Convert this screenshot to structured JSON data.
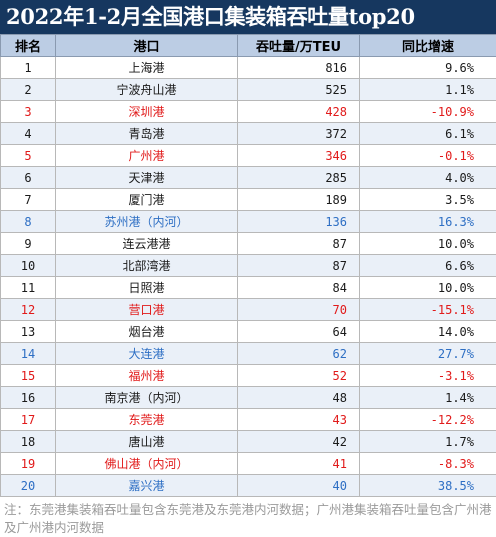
{
  "title": "2022年1-2月全国港口集装箱吞吐量top20",
  "headers": [
    "排名",
    "港口",
    "吞吐量/万TEU",
    "同比增速"
  ],
  "colors": {
    "header_bg": "#16375f",
    "red": "#e11a1a",
    "blue": "#2e6fc4",
    "black": "#1a1a1a"
  },
  "rows": [
    {
      "rank": "1",
      "port": "上海港",
      "volume": "816",
      "growth": "9.6%",
      "color": "black"
    },
    {
      "rank": "2",
      "port": "宁波舟山港",
      "volume": "525",
      "growth": "1.1%",
      "color": "black"
    },
    {
      "rank": "3",
      "port": "深圳港",
      "volume": "428",
      "growth": "-10.9%",
      "color": "red"
    },
    {
      "rank": "4",
      "port": "青岛港",
      "volume": "372",
      "growth": "6.1%",
      "color": "black"
    },
    {
      "rank": "5",
      "port": "广州港",
      "volume": "346",
      "growth": "-0.1%",
      "color": "red"
    },
    {
      "rank": "6",
      "port": "天津港",
      "volume": "285",
      "growth": "4.0%",
      "color": "black"
    },
    {
      "rank": "7",
      "port": "厦门港",
      "volume": "189",
      "growth": "3.5%",
      "color": "black"
    },
    {
      "rank": "8",
      "port": "苏州港（内河）",
      "volume": "136",
      "growth": "16.3%",
      "color": "blue"
    },
    {
      "rank": "9",
      "port": "连云港港",
      "volume": "87",
      "growth": "10.0%",
      "color": "black"
    },
    {
      "rank": "10",
      "port": "北部湾港",
      "volume": "87",
      "growth": "6.6%",
      "color": "black"
    },
    {
      "rank": "11",
      "port": "日照港",
      "volume": "84",
      "growth": "10.0%",
      "color": "black"
    },
    {
      "rank": "12",
      "port": "营口港",
      "volume": "70",
      "growth": "-15.1%",
      "color": "red"
    },
    {
      "rank": "13",
      "port": "烟台港",
      "volume": "64",
      "growth": "14.0%",
      "color": "black"
    },
    {
      "rank": "14",
      "port": "大连港",
      "volume": "62",
      "growth": "27.7%",
      "color": "blue"
    },
    {
      "rank": "15",
      "port": "福州港",
      "volume": "52",
      "growth": "-3.1%",
      "color": "red"
    },
    {
      "rank": "16",
      "port": "南京港（内河）",
      "volume": "48",
      "growth": "1.4%",
      "color": "black"
    },
    {
      "rank": "17",
      "port": "东莞港",
      "volume": "43",
      "growth": "-12.2%",
      "color": "red"
    },
    {
      "rank": "18",
      "port": "唐山港",
      "volume": "42",
      "growth": "1.7%",
      "color": "black"
    },
    {
      "rank": "19",
      "port": "佛山港（内河）",
      "volume": "41",
      "growth": "-8.3%",
      "color": "red"
    },
    {
      "rank": "20",
      "port": "嘉兴港",
      "volume": "40",
      "growth": "38.5%",
      "color": "blue"
    }
  ],
  "note": "注：东莞港集装箱吞吐量包含东莞港及东莞港内河数据；广州港集装箱吞吐量包含广州港及广州港内河数据"
}
